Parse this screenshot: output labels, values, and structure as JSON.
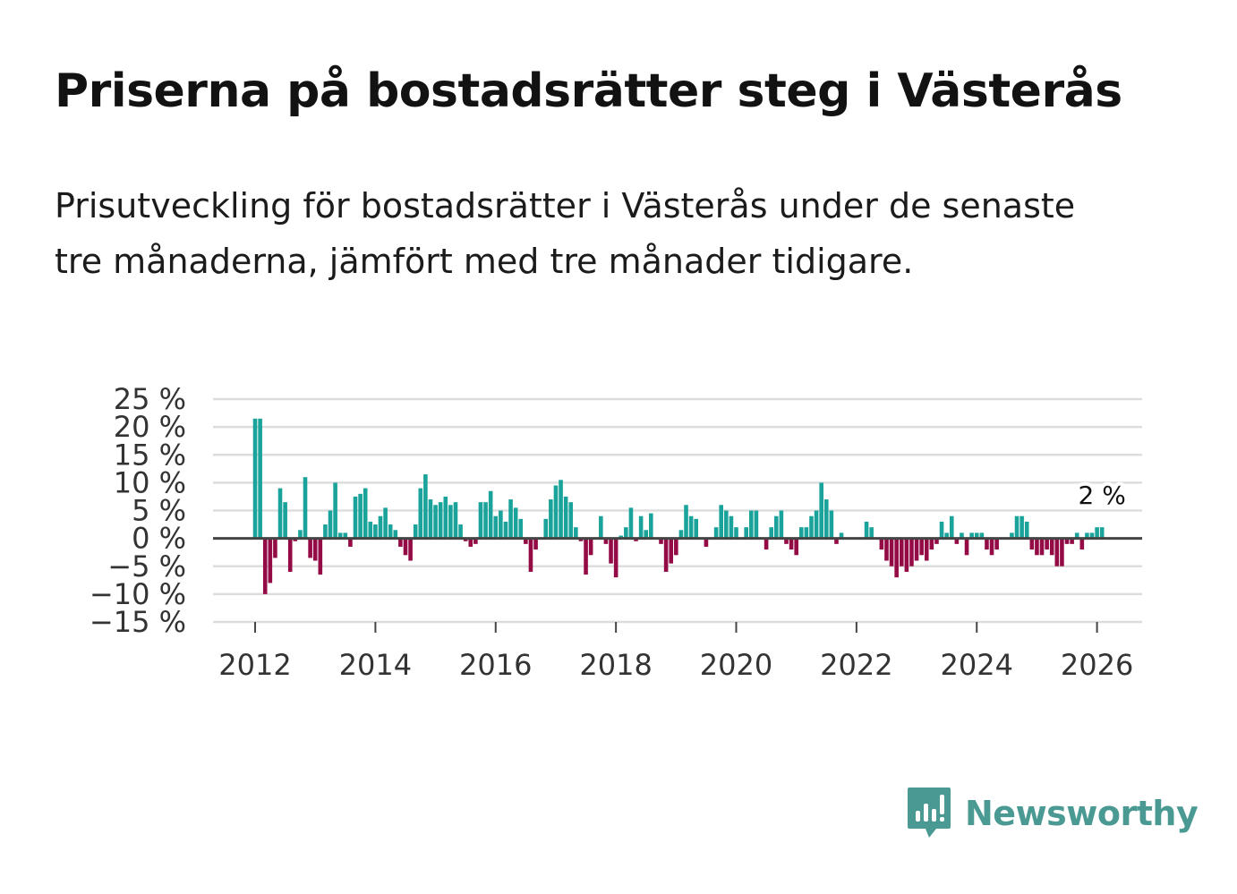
{
  "title": "Priserna på bostadsrätter steg i Västerås",
  "subtitle": "Prisutveckling för bostadsrätter i Västerås under de senaste tre månaderna, jämfört med tre månader tidigare.",
  "colors": {
    "positive": "#1aa39a",
    "negative": "#930a45",
    "grid": "#dddddd",
    "zero_line": "#444444",
    "tick_text": "#333333",
    "brand": "#4a9a93"
  },
  "brand": {
    "name": "Newsworthy",
    "icon": "newsworthy-logo-icon"
  },
  "chart_data": {
    "type": "bar",
    "title": "",
    "xlabel": "",
    "ylabel": "",
    "ylim": [
      -15,
      25
    ],
    "xlim": [
      2011.3,
      2026.75
    ],
    "grid": true,
    "legend": "none",
    "y_ticks": [
      {
        "value": 25,
        "label": "25 %"
      },
      {
        "value": 20,
        "label": "20 %"
      },
      {
        "value": 15,
        "label": "15 %"
      },
      {
        "value": 10,
        "label": "10 %"
      },
      {
        "value": 5,
        "label": "5 %"
      },
      {
        "value": 0,
        "label": "0 %"
      },
      {
        "value": -5,
        "label": "−5 %"
      },
      {
        "value": -10,
        "label": "−10 %"
      },
      {
        "value": -15,
        "label": "−15 %"
      }
    ],
    "x_ticks": [
      {
        "value": 2012,
        "label": "2012"
      },
      {
        "value": 2014,
        "label": "2014"
      },
      {
        "value": 2016,
        "label": "2016"
      },
      {
        "value": 2018,
        "label": "2018"
      },
      {
        "value": 2020,
        "label": "2020"
      },
      {
        "value": 2022,
        "label": "2022"
      },
      {
        "value": 2024,
        "label": "2024"
      },
      {
        "value": 2026,
        "label": "2026"
      }
    ],
    "start_year": 2012,
    "start_month": 0,
    "series": [
      {
        "name": "Prisutveckling",
        "values": [
          21.5,
          21.5,
          -10.0,
          -8.0,
          -3.5,
          9.0,
          6.5,
          -6.0,
          -0.5,
          1.5,
          11.0,
          -3.5,
          -4.0,
          -6.5,
          2.5,
          5.0,
          10.0,
          1.0,
          1.0,
          -1.5,
          7.5,
          8.0,
          9.0,
          3.0,
          2.5,
          4.0,
          5.5,
          2.5,
          1.5,
          -1.5,
          -3.0,
          -4.0,
          2.5,
          9.0,
          11.5,
          7.0,
          6.0,
          6.5,
          7.5,
          6.0,
          6.5,
          2.5,
          -0.5,
          -1.5,
          -1.0,
          6.5,
          6.5,
          8.5,
          4.0,
          5.0,
          3.0,
          7.0,
          5.5,
          3.5,
          -1.0,
          -6.0,
          -2.0,
          0,
          3.5,
          7.0,
          9.5,
          10.5,
          7.5,
          6.5,
          2.0,
          -0.5,
          -6.5,
          -3.0,
          0,
          4.0,
          -1.0,
          -4.5,
          -7.0,
          0.5,
          2.0,
          5.5,
          -0.5,
          4.0,
          1.5,
          4.5,
          0,
          -1.0,
          -6.0,
          -4.5,
          -3.0,
          1.5,
          6.0,
          4.0,
          3.5,
          0,
          -1.5,
          0,
          2.0,
          6.0,
          5.0,
          4.0,
          2.0,
          0,
          2.0,
          5.0,
          5.0,
          0,
          -2.0,
          2.0,
          4.0,
          5.0,
          -1.0,
          -2.0,
          -3.0,
          2.0,
          2.0,
          4.0,
          5.0,
          10.0,
          7.0,
          5.0,
          -1.0,
          1.0,
          0,
          0,
          0,
          0,
          3.0,
          2.0,
          0,
          -2.0,
          -4.0,
          -5.0,
          -7.0,
          -5.0,
          -6.0,
          -5.0,
          -4.0,
          -3.0,
          -4.0,
          -2.0,
          -1.0,
          3.0,
          1.0,
          4.0,
          -1.0,
          1.0,
          -3.0,
          1.0,
          1.0,
          1.0,
          -2.0,
          -3.0,
          -2.0,
          0,
          0,
          1.0,
          4.0,
          4.0,
          3.0,
          -2.0,
          -3.0,
          -3.0,
          -2.0,
          -3.0,
          -5.0,
          -5.0,
          -1.0,
          -1.0,
          1.0,
          -2.0,
          1.0,
          1.0,
          2.0,
          2.0
        ]
      }
    ],
    "annotation": {
      "label": "2 %",
      "value": 2
    }
  }
}
